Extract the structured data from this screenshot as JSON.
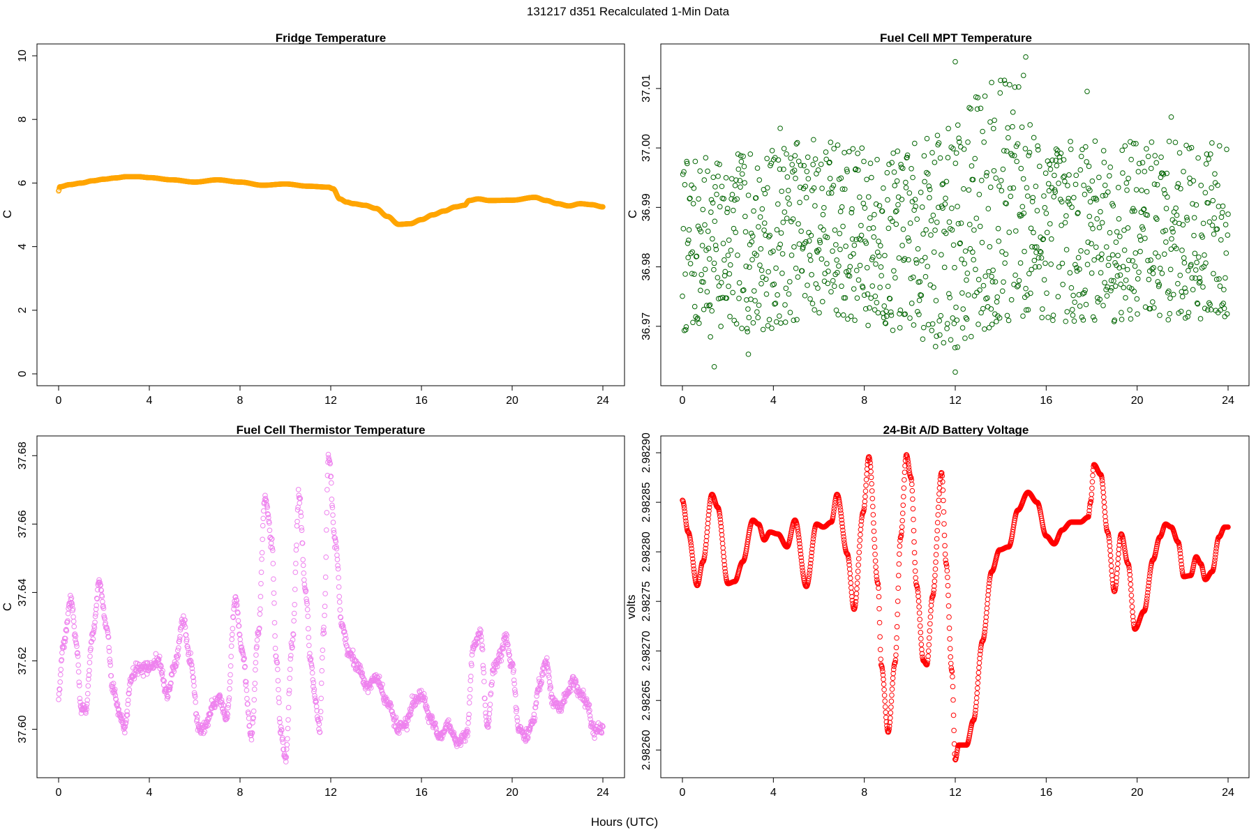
{
  "figure": {
    "title": "131217   d351   Recalculated 1-Min Data",
    "xlabel": "Hours (UTC)"
  },
  "chart_data": [
    {
      "type": "scatter",
      "title": "Fridge Temperature",
      "xlabel": "",
      "ylabel": "C",
      "color": "#FFA500",
      "xlim": [
        0,
        24
      ],
      "ylim": [
        0,
        10
      ],
      "xticks": [
        0,
        4,
        8,
        12,
        16,
        20,
        24
      ],
      "yticks": [
        0,
        2,
        4,
        6,
        8,
        10
      ],
      "ytick_labels": [
        "0",
        "2",
        "4",
        "6",
        "8",
        "10"
      ],
      "mode": "interp",
      "n_points": 1440,
      "jitter": 0.0,
      "x": [
        0,
        0.05,
        0.5,
        1,
        1.5,
        2,
        2.5,
        3,
        3.5,
        4,
        5,
        6,
        7,
        8,
        9,
        10,
        11,
        11.9,
        12.1,
        12.4,
        12.7,
        13,
        13.5,
        14,
        14.5,
        15,
        15.5,
        16,
        16.5,
        17,
        17.5,
        17.9,
        18.1,
        18.5,
        19,
        20,
        21,
        21.5,
        22,
        22.5,
        23,
        23.5,
        24
      ],
      "y": [
        5.75,
        5.88,
        5.95,
        6.0,
        6.07,
        6.12,
        6.16,
        6.2,
        6.2,
        6.17,
        6.1,
        6.03,
        6.1,
        6.03,
        5.93,
        5.97,
        5.9,
        5.87,
        5.82,
        5.5,
        5.4,
        5.35,
        5.3,
        5.2,
        4.95,
        4.7,
        4.72,
        4.85,
        5.0,
        5.12,
        5.25,
        5.3,
        5.45,
        5.5,
        5.45,
        5.46,
        5.55,
        5.45,
        5.35,
        5.28,
        5.35,
        5.32,
        5.25
      ]
    },
    {
      "type": "scatter",
      "title": "Fuel Cell MPT Temperature",
      "xlabel": "",
      "ylabel": "C",
      "color": "#006400",
      "xlim": [
        0,
        24
      ],
      "ylim": [
        36.962,
        37.0155
      ],
      "xticks": [
        0,
        4,
        8,
        12,
        16,
        20,
        24
      ],
      "yticks": [
        36.97,
        36.98,
        36.99,
        37.0,
        37.01
      ],
      "ytick_labels": [
        "36.97",
        "36.98",
        "36.99",
        "37.00",
        "37.01"
      ],
      "mode": "noise",
      "n_points": 1150,
      "seed": 7,
      "x": [
        0,
        3,
        6,
        9,
        12,
        13,
        14.5,
        16,
        18,
        20,
        22,
        24
      ],
      "y": [
        36.983,
        36.984,
        36.987,
        36.984,
        36.985,
        36.989,
        36.991,
        36.986,
        36.986,
        36.986,
        36.986,
        36.986
      ],
      "jitter": [
        0.016,
        0.016,
        0.016,
        0.016,
        0.02,
        0.022,
        0.022,
        0.016,
        0.016,
        0.016,
        0.016,
        0.016
      ],
      "highlights": [
        {
          "x": 12.0,
          "y": 37.0145
        },
        {
          "x": 15.1,
          "y": 37.0153
        },
        {
          "x": 15.0,
          "y": 37.0122
        },
        {
          "x": 13.6,
          "y": 37.011
        },
        {
          "x": 14.2,
          "y": 37.0108
        },
        {
          "x": 17.8,
          "y": 37.0095
        },
        {
          "x": 21.5,
          "y": 37.0052
        },
        {
          "x": 4.3,
          "y": 37.0033
        },
        {
          "x": 1.4,
          "y": 36.9632
        },
        {
          "x": 12.0,
          "y": 36.9623
        },
        {
          "x": 2.9,
          "y": 36.9653
        },
        {
          "x": 12.1,
          "y": 36.9665
        }
      ]
    },
    {
      "type": "scatter",
      "title": "Fuel Cell Thermistor Temperature",
      "xlabel": "",
      "ylabel": "C",
      "color": "#EE82EE",
      "xlim": [
        0,
        24
      ],
      "ylim": [
        37.5893,
        37.6823
      ],
      "xticks": [
        0,
        4,
        8,
        12,
        16,
        20,
        24
      ],
      "yticks": [
        37.6,
        37.62,
        37.64,
        37.66,
        37.68
      ],
      "ytick_labels": [
        "37.60",
        "37.62",
        "37.64",
        "37.66",
        "37.68"
      ],
      "mode": "interp",
      "n_points": 1440,
      "jitter": 0.0016,
      "seed": 3,
      "x": [
        0,
        0.2,
        0.55,
        0.8,
        1.0,
        1.2,
        1.5,
        1.8,
        2.1,
        2.4,
        2.7,
        2.9,
        3.2,
        3.5,
        4.0,
        4.4,
        4.8,
        5.1,
        5.5,
        5.8,
        6.2,
        6.5,
        6.8,
        7.1,
        7.4,
        7.8,
        8.1,
        8.5,
        8.8,
        9.1,
        9.4,
        9.6,
        9.8,
        10.0,
        10.3,
        10.6,
        10.9,
        11.1,
        11.3,
        11.5,
        11.7,
        11.9,
        12.2,
        12.5,
        12.8,
        13.2,
        13.6,
        14.0,
        14.5,
        15.0,
        15.3,
        15.7,
        16.0,
        16.4,
        16.8,
        17.2,
        17.6,
        18.0,
        18.3,
        18.6,
        18.9,
        19.2,
        19.5,
        19.7,
        20.0,
        20.3,
        20.6,
        20.9,
        21.2,
        21.5,
        21.8,
        22.1,
        22.4,
        22.7,
        23.0,
        23.3,
        23.6,
        23.9
      ],
      "y": [
        37.61,
        37.625,
        37.638,
        37.624,
        37.605,
        37.606,
        37.628,
        37.643,
        37.63,
        37.612,
        37.604,
        37.6,
        37.615,
        37.618,
        37.618,
        37.62,
        37.61,
        37.618,
        37.632,
        37.62,
        37.6,
        37.601,
        37.607,
        37.609,
        37.603,
        37.638,
        37.622,
        37.598,
        37.628,
        37.668,
        37.655,
        37.62,
        37.6,
        37.591,
        37.625,
        37.668,
        37.64,
        37.62,
        37.61,
        37.6,
        37.63,
        37.68,
        37.655,
        37.63,
        37.622,
        37.618,
        37.613,
        37.615,
        37.608,
        37.6,
        37.602,
        37.608,
        37.61,
        37.603,
        37.598,
        37.601,
        37.596,
        37.599,
        37.625,
        37.628,
        37.601,
        37.618,
        37.622,
        37.627,
        37.618,
        37.6,
        37.598,
        37.602,
        37.613,
        37.62,
        37.608,
        37.606,
        37.61,
        37.614,
        37.611,
        37.607,
        37.6,
        37.6
      ]
    },
    {
      "type": "scatter",
      "title": "24-Bit A/D Battery Voltage",
      "xlabel": "",
      "ylabel": "volts",
      "color": "#FF0000",
      "xlim": [
        0,
        24
      ],
      "ylim": [
        2.982584,
        2.982905
      ],
      "xticks": [
        0,
        4,
        8,
        12,
        16,
        20,
        24
      ],
      "yticks": [
        2.9826,
        2.9827,
        2.9828,
        2.9829
      ],
      "ytick_labels": [
        "2.98260",
        "2.98270",
        "2.98280",
        "2.98290"
      ],
      "extra_ytick_labels": [
        {
          "value": 2.98265,
          "label": "2.98265"
        },
        {
          "value": 2.98275,
          "label": "2.98275"
        },
        {
          "value": 2.98285,
          "label": "2.98285"
        }
      ],
      "mode": "interp",
      "n_points": 1440,
      "jitter": 0.0,
      "x": [
        0,
        0.25,
        0.65,
        0.9,
        1.3,
        1.55,
        2.0,
        2.3,
        2.65,
        3.1,
        3.35,
        3.6,
        3.85,
        4.2,
        4.6,
        4.95,
        5.45,
        5.9,
        6.2,
        6.55,
        6.8,
        7.25,
        7.55,
        7.95,
        8.2,
        8.6,
        8.75,
        9.05,
        9.35,
        9.6,
        9.85,
        10.05,
        10.3,
        10.6,
        10.75,
        11.0,
        11.4,
        11.6,
        11.85,
        12.0,
        12.15,
        12.5,
        12.8,
        13.2,
        13.6,
        13.95,
        14.35,
        14.75,
        15.2,
        15.6,
        16.0,
        16.35,
        16.7,
        17.1,
        17.5,
        17.85,
        17.95,
        18.1,
        18.4,
        18.7,
        19.0,
        19.3,
        19.6,
        19.9,
        20.3,
        20.7,
        21.0,
        21.25,
        21.5,
        21.8,
        22.05,
        22.35,
        22.6,
        22.8,
        23.0,
        23.3,
        23.6,
        23.85,
        24.0
      ],
      "y": [
        2.982852,
        2.98282,
        2.982766,
        2.98279,
        2.982858,
        2.982845,
        2.982768,
        2.98277,
        2.98279,
        2.982832,
        2.982828,
        2.982812,
        2.98282,
        2.982818,
        2.982805,
        2.982832,
        2.982765,
        2.982828,
        2.982825,
        2.98283,
        2.982858,
        2.982798,
        2.982742,
        2.98284,
        2.982896,
        2.982768,
        2.982685,
        2.982618,
        2.982688,
        2.982815,
        2.982898,
        2.982875,
        2.982766,
        2.98269,
        2.982686,
        2.982755,
        2.98288,
        2.982788,
        2.98268,
        2.98259,
        2.982605,
        2.982605,
        2.98263,
        2.98271,
        2.98278,
        2.982802,
        2.982805,
        2.982842,
        2.98286,
        2.98285,
        2.982816,
        2.982808,
        2.982822,
        2.98283,
        2.98283,
        2.982835,
        2.98285,
        2.982888,
        2.982878,
        2.98282,
        2.98276,
        2.982818,
        2.982788,
        2.982722,
        2.98274,
        2.982792,
        2.982815,
        2.982828,
        2.982825,
        2.98281,
        2.982775,
        2.982776,
        2.982795,
        2.982788,
        2.982772,
        2.98278,
        2.982815,
        2.982825,
        2.982825
      ]
    }
  ]
}
